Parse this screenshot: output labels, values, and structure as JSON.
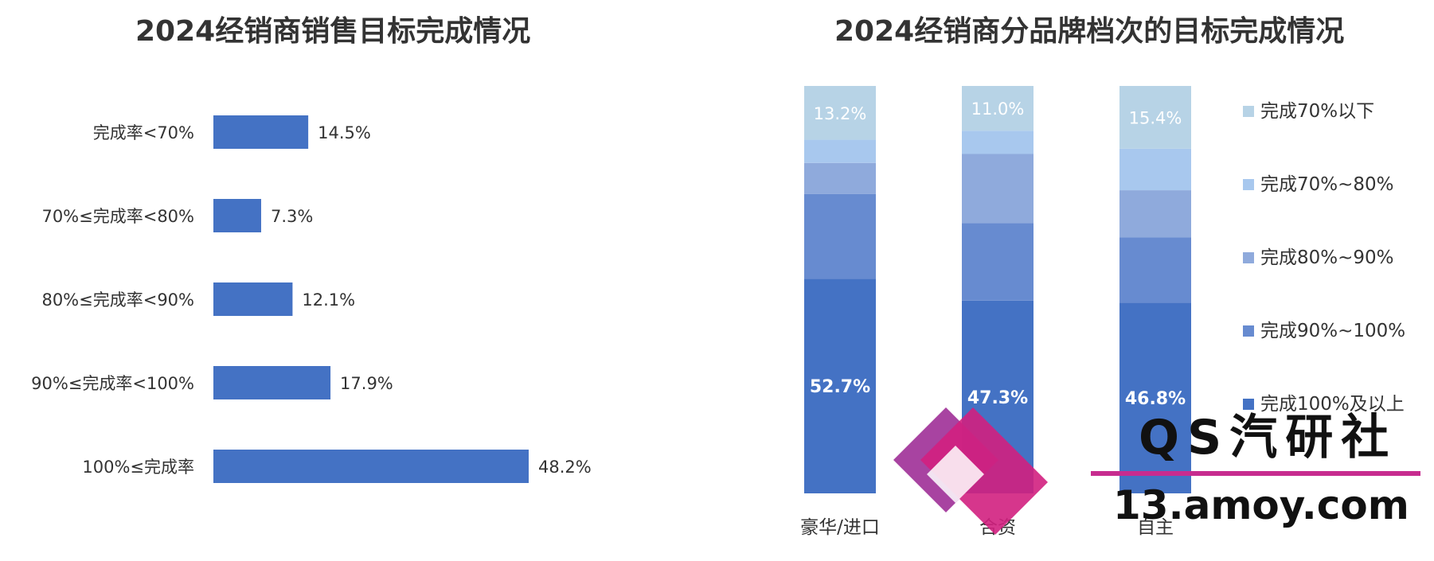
{
  "chart_data": [
    {
      "type": "bar",
      "orientation": "horizontal",
      "title": "2024经销商销售目标完成情况",
      "categories": [
        "完成率<70%",
        "70%≤完成率<80%",
        "80%≤完成率<90%",
        "90%≤完成率<100%",
        "100%≤完成率"
      ],
      "values": [
        14.5,
        7.3,
        12.1,
        17.9,
        48.2
      ],
      "value_labels": [
        "14.5%",
        "7.3%",
        "12.1%",
        "17.9%",
        "48.2%"
      ],
      "unit": "%",
      "color": "#4472C4",
      "xlim": [
        0,
        50
      ],
      "grid": false
    },
    {
      "type": "bar",
      "orientation": "vertical",
      "stacked": true,
      "title": "2024经销商分品牌档次的目标完成情况",
      "categories": [
        "豪华/进口",
        "合资",
        "自主"
      ],
      "series": [
        {
          "name": "完成100%及以上",
          "color": "#4472C4",
          "values": [
            52.7,
            47.3,
            46.8
          ]
        },
        {
          "name": "完成90%~100%",
          "color": "#678BD0",
          "values": [
            20.8,
            19.0,
            16.0
          ]
        },
        {
          "name": "完成80%~90%",
          "color": "#8FAADC",
          "values": [
            7.6,
            17.0,
            11.6
          ]
        },
        {
          "name": "完成70%~80%",
          "color": "#A8C8EE",
          "values": [
            5.7,
            5.7,
            10.2
          ]
        },
        {
          "name": "完成70%以下",
          "color": "#B7D3E6",
          "values": [
            13.2,
            11.0,
            15.4
          ]
        }
      ],
      "data_labels": {
        "完成100%及以上": [
          "52.7%",
          "47.3%",
          "46.8%"
        ],
        "完成70%以下": [
          "13.2%",
          "11.0%",
          "15.4%"
        ]
      },
      "ylim": [
        0,
        100
      ],
      "legend_position": "right",
      "grid": false
    }
  ],
  "watermark": {
    "brand": "QS汽研社",
    "url": "13.amoy.com",
    "colors": {
      "logo_primary": "#D1207F",
      "logo_secondary": "#9E2F97",
      "line": "#C72C8F"
    }
  }
}
